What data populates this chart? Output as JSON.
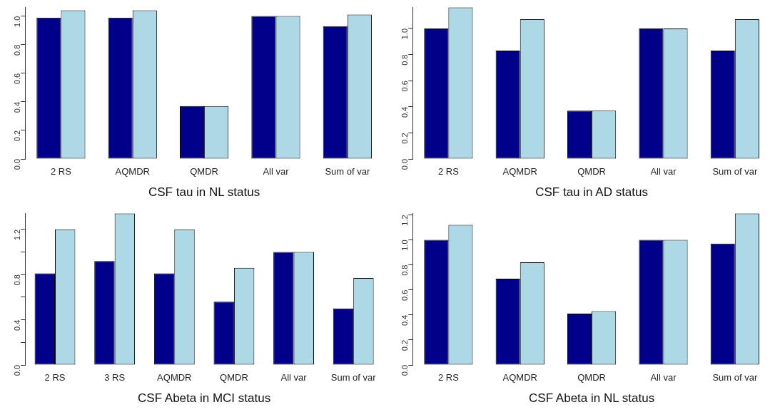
{
  "chart_data": [
    {
      "type": "bar",
      "xlabel": "CSF tau in NL status",
      "categories": [
        "2 RS",
        "AQMDR",
        "QMDR",
        "All var",
        "Sum of var"
      ],
      "ylim": [
        0,
        1.06
      ],
      "yticks": [
        {
          "value": 0,
          "label": "0.0"
        },
        {
          "value": 0.2,
          "label": "0.2"
        },
        {
          "value": 0.4,
          "label": "0.4"
        },
        {
          "value": 0.6,
          "label": "0.6"
        },
        {
          "value": 0.8,
          "label": "0.8"
        },
        {
          "value": 1,
          "label": "1.0"
        }
      ],
      "legend": false,
      "series": [
        {
          "color": "#00008b",
          "values": [
            0.99,
            0.99,
            0.37,
            1.0,
            0.93
          ]
        },
        {
          "color": "#add8e6",
          "values": [
            1.04,
            1.04,
            0.37,
            1.0,
            1.01
          ]
        }
      ]
    },
    {
      "type": "bar",
      "xlabel": "CSF tau in AD status",
      "categories": [
        "2 RS",
        "AQMDR",
        "QMDR",
        "All var",
        "Sum of var"
      ],
      "ylim": [
        0,
        1.16
      ],
      "yticks": [
        {
          "value": 0,
          "label": "0.0"
        },
        {
          "value": 0.2,
          "label": "0.2"
        },
        {
          "value": 0.4,
          "label": "0.4"
        },
        {
          "value": 0.6,
          "label": "0.6"
        },
        {
          "value": 0.8,
          "label": "0.8"
        },
        {
          "value": 1,
          "label": "1.0"
        }
      ],
      "legend": false,
      "series": [
        {
          "color": "#00008b",
          "values": [
            1.0,
            0.83,
            0.37,
            1.0,
            0.83
          ]
        },
        {
          "color": "#add8e6",
          "values": [
            1.16,
            1.07,
            0.37,
            1.0,
            1.07
          ]
        }
      ]
    },
    {
      "type": "bar",
      "xlabel": "CSF Abeta in MCI status",
      "categories": [
        "2 RS",
        "3 RS",
        "AQMDR",
        "QMDR",
        "All var",
        "Sum of var"
      ],
      "ylim": [
        0,
        1.34
      ],
      "yticks": [
        {
          "value": 0,
          "label": "0.0"
        },
        {
          "value": 0.2,
          "label": null
        },
        {
          "value": 0.4,
          "label": "0.4"
        },
        {
          "value": 0.6,
          "label": null
        },
        {
          "value": 0.8,
          "label": "0.8"
        },
        {
          "value": 1,
          "label": null
        },
        {
          "value": 1.2,
          "label": "1.2"
        }
      ],
      "legend": false,
      "series": [
        {
          "color": "#00008b",
          "values": [
            0.81,
            0.92,
            0.81,
            0.56,
            1.0,
            0.5
          ]
        },
        {
          "color": "#add8e6",
          "values": [
            1.2,
            1.34,
            1.2,
            0.86,
            1.0,
            0.77
          ]
        }
      ]
    },
    {
      "type": "bar",
      "xlabel": "CSF Abeta in NL status",
      "categories": [
        "2 RS",
        "AQMDR",
        "QMDR",
        "All var",
        "Sum of var"
      ],
      "ylim": [
        0,
        1.21
      ],
      "yticks": [
        {
          "value": 0,
          "label": "0.0"
        },
        {
          "value": 0.2,
          "label": "0.2"
        },
        {
          "value": 0.4,
          "label": "0.4"
        },
        {
          "value": 0.6,
          "label": "0.6"
        },
        {
          "value": 0.8,
          "label": "0.8"
        },
        {
          "value": 1,
          "label": "1.0"
        },
        {
          "value": 1.2,
          "label": "1.2"
        }
      ],
      "legend": false,
      "series": [
        {
          "color": "#00008b",
          "values": [
            1.0,
            0.69,
            0.41,
            1.0,
            0.97
          ]
        },
        {
          "color": "#add8e6",
          "values": [
            1.12,
            0.82,
            0.43,
            1.0,
            1.21
          ]
        }
      ]
    }
  ]
}
